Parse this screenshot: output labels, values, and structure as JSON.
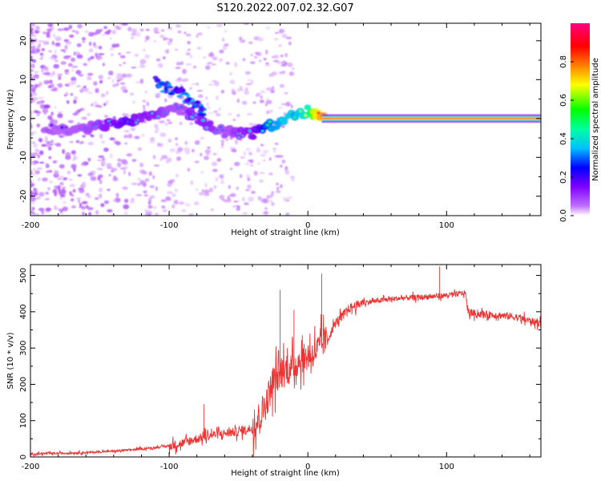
{
  "title": "S120.2022.007.02.32.G07",
  "chart_data": [
    {
      "type": "heatmap",
      "xlabel": "Height of straight line (km)",
      "ylabel": "Frequency (Hz)",
      "xlim": [
        -200,
        168
      ],
      "ylim": [
        -25,
        24.5
      ],
      "x_ticks": [
        -200,
        -100,
        0,
        100
      ],
      "y_ticks": [
        20,
        10,
        0,
        -10,
        -20
      ],
      "colorbar": {
        "label": "Normalized spectral amplitude",
        "range": [
          0,
          1
        ],
        "ticks": [
          0.0,
          0.2,
          0.4,
          0.6,
          0.8
        ],
        "colormap": [
          "#ffffff",
          "#c070ff",
          "#8000ff",
          "#0000ff",
          "#00c0ff",
          "#00ffa0",
          "#00ff00",
          "#ffff00",
          "#ff8000",
          "#ff0000",
          "#ff0080"
        ]
      },
      "trace": {
        "x": [
          -200,
          -185,
          -175,
          -160,
          -145,
          -130,
          -120,
          -110,
          -100,
          -95,
          -90,
          -85,
          -80,
          -75,
          -70,
          -65,
          -60,
          -55,
          -50,
          -45,
          -40,
          -35,
          -30,
          -25,
          -20,
          -15,
          -10,
          -5,
          0,
          5,
          10,
          20,
          50,
          100,
          168
        ],
        "frequency": [
          -3,
          -2.5,
          -3,
          -2.5,
          -1.5,
          -1,
          0.5,
          1,
          2.5,
          3,
          2,
          1,
          0,
          -1,
          -2,
          -3,
          -3.5,
          -3,
          -4,
          -3.5,
          -4,
          -3,
          -1.5,
          -2,
          -1,
          0,
          1,
          1,
          2,
          1,
          0.5,
          0,
          0,
          0,
          0
        ],
        "amplitude": [
          0.1,
          0.15,
          0.2,
          0.25,
          0.3,
          0.35,
          0.3,
          0.3,
          0.25,
          0.25,
          0.25,
          0.3,
          0.3,
          0.3,
          0.3,
          0.25,
          0.25,
          0.25,
          0.3,
          0.3,
          0.3,
          0.35,
          0.45,
          0.5,
          0.5,
          0.55,
          0.5,
          0.55,
          0.6,
          0.8,
          0.9,
          0.95,
          1.0,
          1.0,
          1.0
        ]
      },
      "upper_branch": {
        "x": [
          -110,
          -105,
          -100,
          -95,
          -90,
          -85,
          -80,
          -75
        ],
        "frequency": [
          9.5,
          8.5,
          8,
          7,
          6,
          4,
          3,
          1
        ]
      }
    },
    {
      "type": "line",
      "xlabel": "Height of straight line (km)",
      "ylabel": "SNR (10 * v/v)",
      "xlim": [
        -200,
        168
      ],
      "ylim": [
        0,
        530
      ],
      "x_ticks": [
        -200,
        -100,
        0,
        100
      ],
      "y_ticks": [
        0,
        100,
        200,
        300,
        400,
        500
      ],
      "color": "#ee3333",
      "series": [
        {
          "x": [
            -200,
            -180,
            -160,
            -140,
            -120,
            -100,
            -90,
            -80,
            -70,
            -60,
            -50,
            -40,
            -35,
            -30,
            -25,
            -20,
            -15,
            -10,
            -5,
            0,
            5,
            10,
            15,
            20,
            30,
            40,
            50,
            60,
            70,
            80,
            90,
            100,
            110,
            114,
            115,
            120,
            130,
            140,
            150,
            160,
            168
          ],
          "values": [
            8,
            10,
            12,
            16,
            22,
            30,
            38,
            50,
            60,
            65,
            70,
            80,
            110,
            150,
            210,
            230,
            240,
            250,
            270,
            275,
            290,
            310,
            330,
            370,
            410,
            425,
            430,
            435,
            438,
            440,
            442,
            445,
            450,
            452,
            400,
            395,
            392,
            390,
            385,
            375,
            368
          ]
        }
      ],
      "notable_spikes": {
        "x": [
          -75,
          -20,
          -10,
          10,
          95
        ],
        "values": [
          145,
          460,
          405,
          505,
          525
        ]
      }
    }
  ]
}
